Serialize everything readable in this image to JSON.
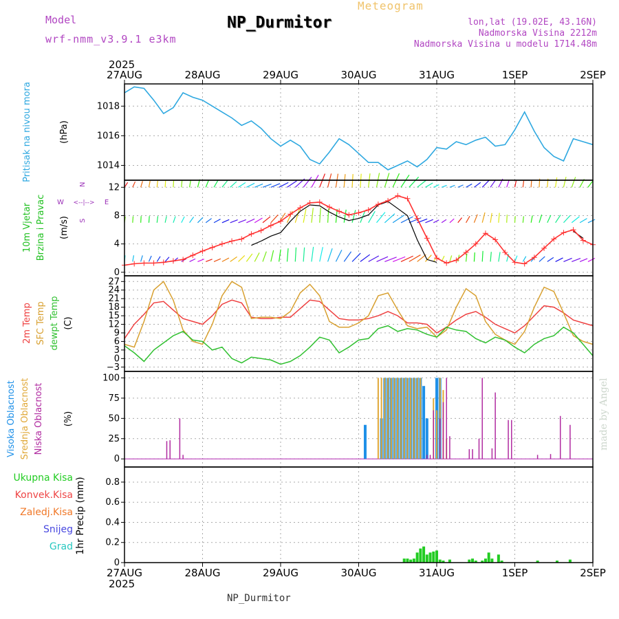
{
  "header": {
    "model_label": "Model",
    "model_value": "wrf-nmm_v3.9.1 e3km",
    "product": "Meteogram",
    "station": "NP_Durmitor",
    "coords": "lon,lat (19.02E, 43.16N)",
    "altitude": "Nadmorska Visina 2212m",
    "model_altitude": "Nadmorska Visina u modelu 1714.48m",
    "watermark": "made by Angel"
  },
  "footer": {
    "station": "NP_Durmitor"
  },
  "colors": {
    "pressure": "#2ea8e0",
    "wind_speed": "#ff3030",
    "wind_gust": "#000000",
    "t2m": "#ee4040",
    "sfc": "#d8a030",
    "dewpt": "#30c030",
    "cloud_high": "#1e90e8",
    "cloud_mid": "#e0a838",
    "cloud_low": "#b02aa0",
    "precip_total": "#22cc22"
  },
  "chart_data": {
    "type": "meteogram",
    "x_axis": {
      "year": "2025",
      "ticks": [
        "27AUG",
        "28AUG",
        "29AUG",
        "30AUG",
        "31AUG",
        "1SEP",
        "2SEP"
      ],
      "range_hours": [
        0,
        144
      ]
    },
    "panels": [
      {
        "id": "pressure",
        "type": "line",
        "ylabel_lines": [
          "Pritisak na nivou mora",
          "(hPa)"
        ],
        "ylim": [
          1013,
          1019.5
        ],
        "yticks": [
          1014,
          1016,
          1018
        ],
        "x_hours": [
          0,
          3,
          6,
          9,
          12,
          15,
          18,
          21,
          24,
          27,
          30,
          33,
          36,
          39,
          42,
          45,
          48,
          51,
          54,
          57,
          60,
          63,
          66,
          69,
          72,
          75,
          78,
          81,
          84,
          87,
          90,
          93,
          96,
          99,
          102,
          105,
          108,
          111,
          114,
          117,
          120,
          123,
          126,
          129,
          132,
          135,
          138,
          141,
          144
        ],
        "values": [
          1018.9,
          1019.3,
          1019.2,
          1018.4,
          1017.5,
          1017.9,
          1018.9,
          1018.6,
          1018.4,
          1018.0,
          1017.6,
          1017.2,
          1016.7,
          1017.0,
          1016.5,
          1015.8,
          1015.3,
          1015.7,
          1015.3,
          1014.4,
          1014.1,
          1014.9,
          1015.8,
          1015.4,
          1014.8,
          1014.2,
          1014.2,
          1013.7,
          1014.0,
          1014.3,
          1013.9,
          1014.4,
          1015.2,
          1015.1,
          1015.6,
          1015.4,
          1015.7,
          1015.9,
          1015.3,
          1015.4,
          1016.4,
          1017.6,
          1016.3,
          1015.2,
          1014.6,
          1014.3,
          1015.8,
          1015.6,
          1015.4
        ]
      },
      {
        "id": "wind",
        "type": "line+barbs",
        "ylabel_lines": [
          "10m Vjetar",
          "Brzina i Pravac",
          "(m/s)"
        ],
        "compass_labels": [
          "N",
          "E",
          "S",
          "W",
          "<--|-->"
        ],
        "ylim": [
          -0.5,
          13
        ],
        "yticks": [
          0,
          4,
          8,
          12
        ],
        "x_hours": [
          0,
          3,
          6,
          9,
          12,
          15,
          18,
          21,
          24,
          27,
          30,
          33,
          36,
          39,
          42,
          45,
          48,
          51,
          54,
          57,
          60,
          63,
          66,
          69,
          72,
          75,
          78,
          81,
          84,
          87,
          90,
          93,
          96,
          99,
          102,
          105,
          108,
          111,
          114,
          117,
          120,
          123,
          126,
          129,
          132,
          135,
          138,
          141,
          144
        ],
        "series": [
          {
            "name": "speed",
            "values": [
              1.0,
              1.2,
              1.3,
              1.3,
              1.4,
              1.6,
              1.8,
              2.4,
              3.0,
              3.5,
              4.0,
              4.4,
              4.7,
              5.4,
              5.9,
              6.6,
              7.2,
              8.2,
              9.1,
              9.8,
              9.9,
              9.2,
              8.6,
              8.1,
              8.4,
              8.8,
              9.6,
              10.1,
              10.8,
              10.4,
              7.6,
              4.8,
              2.0,
              1.3,
              1.7,
              2.8,
              4.0,
              5.5,
              4.6,
              2.8,
              1.4,
              1.2,
              2.1,
              3.4,
              4.7,
              5.6,
              6.0,
              4.5,
              3.9
            ]
          },
          {
            "name": "gust",
            "values": [
              null,
              null,
              null,
              null,
              null,
              null,
              null,
              null,
              null,
              null,
              null,
              null,
              null,
              3.8,
              4.4,
              5.1,
              5.6,
              7.2,
              8.6,
              9.5,
              9.4,
              8.5,
              7.8,
              7.3,
              7.6,
              8.1,
              9.5,
              10.0,
              9.0,
              8.0,
              4.6,
              1.8,
              1.4,
              null,
              null,
              null,
              null,
              null,
              null,
              null,
              null,
              null,
              null,
              null,
              null,
              null,
              5.8,
              4.8,
              null
            ]
          }
        ],
        "barb_rows_ms": [
          12,
          7,
          1.5
        ]
      },
      {
        "id": "temperature",
        "type": "line",
        "ylabel_lines": [
          "2m Temp",
          "SFC Temp",
          "dewpt Temp",
          "(C)"
        ],
        "ylim": [
          -4.5,
          29
        ],
        "yticks": [
          -3,
          0,
          3,
          6,
          9,
          12,
          15,
          18,
          21,
          24,
          27
        ],
        "x_hours": [
          0,
          3,
          6,
          9,
          12,
          15,
          18,
          21,
          24,
          27,
          30,
          33,
          36,
          39,
          42,
          45,
          48,
          51,
          54,
          57,
          60,
          63,
          66,
          69,
          72,
          75,
          78,
          81,
          84,
          87,
          90,
          93,
          96,
          99,
          102,
          105,
          108,
          111,
          114,
          117,
          120,
          123,
          126,
          129,
          132,
          135,
          138,
          141,
          144
        ],
        "series": [
          {
            "name": "2m Temp",
            "values": [
              7.0,
              12.0,
              15.5,
              19.5,
              20.0,
              17.0,
              14.0,
              13.0,
              12.0,
              15.0,
              19.0,
              20.5,
              19.5,
              14.5,
              14.0,
              14.0,
              14.5,
              14.5,
              17.5,
              20.5,
              20.0,
              17.0,
              14.0,
              13.5,
              13.5,
              14.0,
              15.0,
              16.5,
              15.0,
              12.5,
              12.5,
              12.0,
              9.0,
              11.0,
              13.5,
              15.5,
              16.5,
              14.5,
              12.0,
              10.5,
              9.0,
              11.5,
              15.0,
              18.5,
              18.0,
              16.0,
              13.5,
              12.5,
              11.5
            ]
          },
          {
            "name": "SFC Temp",
            "values": [
              5.0,
              4.0,
              13.0,
              24.0,
              27.0,
              20.5,
              10.0,
              6.0,
              5.0,
              12.0,
              22.0,
              27.0,
              25.0,
              14.0,
              14.5,
              14.5,
              14.0,
              16.5,
              23.0,
              26.0,
              22.0,
              13.0,
              11.0,
              11.0,
              12.5,
              15.0,
              22.0,
              23.0,
              17.0,
              11.5,
              10.5,
              11.0,
              7.5,
              10.0,
              18.0,
              24.5,
              22.0,
              13.0,
              8.5,
              6.5,
              5.0,
              9.5,
              18.0,
              25.0,
              23.5,
              16.0,
              8.0,
              6.0,
              5.0
            ]
          },
          {
            "name": "dewpt Temp",
            "values": [
              4.5,
              2.0,
              -1.0,
              3.0,
              5.5,
              8.0,
              9.5,
              6.5,
              6.0,
              3.0,
              4.0,
              0.0,
              -1.5,
              0.5,
              0.0,
              -0.5,
              -2.0,
              -1.0,
              1.0,
              4.0,
              7.5,
              6.5,
              2.0,
              4.0,
              6.5,
              7.0,
              10.5,
              11.5,
              9.5,
              10.5,
              10.0,
              8.5,
              7.5,
              11.0,
              10.0,
              9.5,
              7.0,
              5.5,
              7.5,
              6.5,
              4.0,
              2.0,
              5.0,
              7.0,
              8.0,
              11.0,
              9.0,
              5.0,
              1.0
            ]
          }
        ]
      },
      {
        "id": "cloud",
        "type": "bar",
        "ylabel_lines": [
          "Visoka Oblacnost",
          "Srednja Oblacnost",
          "Niska Oblacnost",
          "(%)"
        ],
        "ylim": [
          -10,
          108
        ],
        "yticks": [
          0,
          25,
          50,
          75,
          100
        ],
        "series": [
          {
            "name": "Visoka",
            "color_key": "cloud_high",
            "points": [
              [
                74,
                42
              ],
              [
                79,
                50
              ],
              [
                80,
                100
              ],
              [
                81,
                100
              ],
              [
                82,
                100
              ],
              [
                83,
                100
              ],
              [
                84,
                100
              ],
              [
                85,
                100
              ],
              [
                86,
                100
              ],
              [
                87,
                100
              ],
              [
                88,
                100
              ],
              [
                89,
                100
              ],
              [
                90,
                100
              ],
              [
                91,
                100
              ],
              [
                92,
                90
              ],
              [
                93,
                50
              ],
              [
                96,
                100
              ],
              [
                97,
                100
              ]
            ]
          },
          {
            "name": "Srednja",
            "color_key": "cloud_mid",
            "points": [
              [
                78,
                100
              ],
              [
                79,
                100
              ],
              [
                80,
                100
              ],
              [
                81,
                100
              ],
              [
                82,
                100
              ],
              [
                83,
                100
              ],
              [
                84,
                100
              ],
              [
                85,
                100
              ],
              [
                86,
                100
              ],
              [
                87,
                100
              ],
              [
                88,
                100
              ],
              [
                89,
                100
              ],
              [
                90,
                100
              ],
              [
                91,
                100
              ],
              [
                95,
                75
              ],
              [
                96,
                60
              ],
              [
                97,
                100
              ],
              [
                98,
                85
              ],
              [
                99,
                25
              ]
            ]
          },
          {
            "name": "Niska",
            "color_key": "cloud_low",
            "points": [
              [
                13,
                22
              ],
              [
                14,
                23
              ],
              [
                17,
                50
              ],
              [
                18,
                5
              ],
              [
                93,
                5
              ],
              [
                94,
                5
              ],
              [
                95,
                60
              ],
              [
                97,
                50
              ],
              [
                98,
                70
              ],
              [
                99,
                100
              ],
              [
                100,
                28
              ],
              [
                106,
                12
              ],
              [
                107,
                12
              ],
              [
                109,
                25
              ],
              [
                110,
                100
              ],
              [
                113,
                13
              ],
              [
                114,
                82
              ],
              [
                118,
                48
              ],
              [
                119,
                48
              ],
              [
                127,
                5
              ],
              [
                131,
                6
              ],
              [
                134,
                53
              ],
              [
                137,
                42
              ]
            ]
          }
        ]
      },
      {
        "id": "precip",
        "type": "bar",
        "ylabel_lines": [
          "1hr Precip (mm)"
        ],
        "legend": [
          "Ukupna Kisa",
          "Konvek.Kisa",
          "Zaledj.Kisa",
          "Snijeg",
          "Grad"
        ],
        "legend_colors": [
          "#22cc22",
          "#ee4444",
          "#f07828",
          "#4848e0",
          "#28c8c0"
        ],
        "ylim": [
          0,
          0.95
        ],
        "yticks": [
          0,
          0.2,
          0.4,
          0.6,
          0.8
        ],
        "x_hours": [
          86,
          87,
          88,
          89,
          90,
          91,
          92,
          93,
          94,
          95,
          96,
          97,
          98,
          100,
          106,
          107,
          108,
          110,
          111,
          112,
          113,
          115,
          116,
          127,
          133,
          137
        ],
        "values": [
          0.04,
          0.04,
          0.03,
          0.04,
          0.1,
          0.14,
          0.16,
          0.08,
          0.1,
          0.11,
          0.12,
          0.03,
          0.02,
          0.03,
          0.03,
          0.04,
          0.02,
          0.02,
          0.04,
          0.1,
          0.04,
          0.08,
          0.02,
          0.02,
          0.02,
          0.03
        ]
      }
    ]
  }
}
